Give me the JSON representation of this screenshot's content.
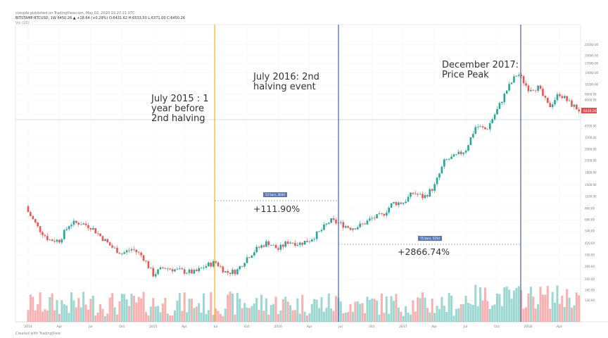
{
  "header": {
    "publish_line": "coinpile published on TradingView.com, May 02, 2020 22:27:21 UTC",
    "symbol_line": "BITSTAMP:BTCUSD, 1W  6450.26  ▲ +18.64 (+0.29%)  O:6431.62 H:6533.50 L:6371.00 C:6450.26",
    "volume_line": "Vol (20)"
  },
  "annotations": {
    "a1": "July 2015 : 1\nyear before\n2nd halving",
    "a2": "July 2016: 2nd\nhalving event",
    "a3": "December 2017:\nPrice Peak",
    "pct1": "+111.90%",
    "pct2": "+2866.74%",
    "box1": "52 bars, 364d",
    "box2": "75 bars, 525d"
  },
  "last_price_label": "6450.26",
  "footer": "Created with TradingView",
  "colors": {
    "up": "#26a69a",
    "down": "#ef5350",
    "july2015_line": "#f0b030",
    "halving_line": "#4a5fa0",
    "peak_line": "#4a5fa0",
    "price_line": "#b8d4e8"
  },
  "chart_data": {
    "type": "candlestick",
    "scale": "log",
    "x_tick_labels": [
      "2014",
      "Apr",
      "Jul",
      "Oct",
      "2015",
      "Apr",
      "Jul",
      "Oct",
      "2016",
      "Apr",
      "Jul",
      "Oct",
      "2017",
      "Apr",
      "Jul",
      "Oct",
      "2018",
      "Apr"
    ],
    "y_tick_labels": [
      25000,
      20000,
      17000,
      14000,
      11000,
      9000,
      8000,
      6000,
      4700,
      3700,
      2900,
      2300,
      1800,
      1400,
      1100,
      860,
      680,
      540,
      420,
      330,
      260,
      200,
      160,
      130
    ],
    "monthly_close_usd": [
      800,
      570,
      450,
      445,
      630,
      640,
      590,
      480,
      390,
      340,
      375,
      320,
      220,
      255,
      245,
      235,
      230,
      262,
      285,
      230,
      236,
      313,
      377,
      430,
      370,
      437,
      416,
      448,
      530,
      670,
      625,
      575,
      610,
      700,
      745,
      960,
      970,
      1190,
      1080,
      1350,
      2300,
      2500,
      2870,
      4700,
      4340,
      6450,
      10000,
      14000,
      10200,
      10300,
      6900,
      9200,
      7500,
      6400,
      7700,
      6450
    ],
    "start_month": "2014-01",
    "events": [
      {
        "label": "July 2015",
        "date": "2015-07"
      },
      {
        "label": "July 2016 halving",
        "date": "2016-07"
      },
      {
        "label": "December 2017 peak",
        "date": "2017-12"
      }
    ],
    "measurements": [
      {
        "from": "2015-07",
        "to": "2016-07",
        "change_pct": 111.9
      },
      {
        "from": "2016-07",
        "to": "2017-12",
        "change_pct": 2866.74
      }
    ]
  }
}
